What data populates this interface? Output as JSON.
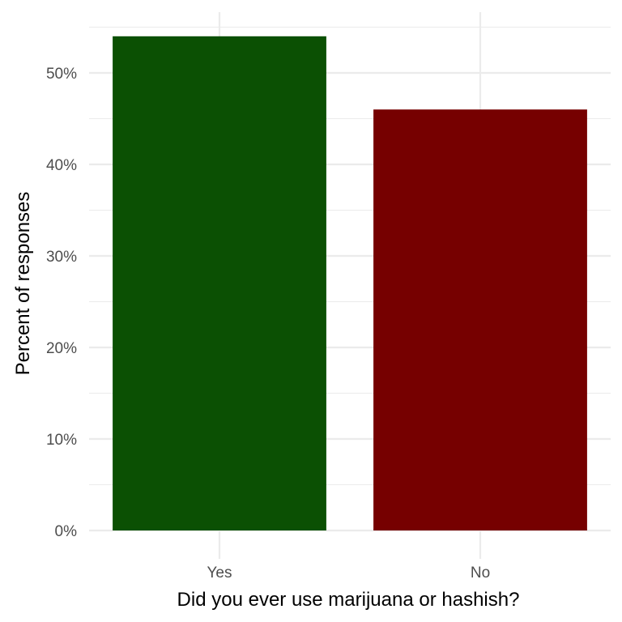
{
  "chart_data": {
    "type": "bar",
    "categories": [
      "Yes",
      "No"
    ],
    "values": [
      54,
      46
    ],
    "value_unit": "%",
    "xlabel": "Did you ever use marijuana or hashish?",
    "ylabel": "Percent of responses",
    "ylim": [
      0,
      56.5
    ],
    "y_ticks": [
      0,
      10,
      20,
      30,
      40,
      50
    ],
    "y_tick_labels": [
      "0%",
      "10%",
      "20%",
      "30%",
      "40%",
      "50%"
    ],
    "grid": true,
    "legend": "none",
    "colors": [
      "#0b5003",
      "#760000"
    ]
  }
}
